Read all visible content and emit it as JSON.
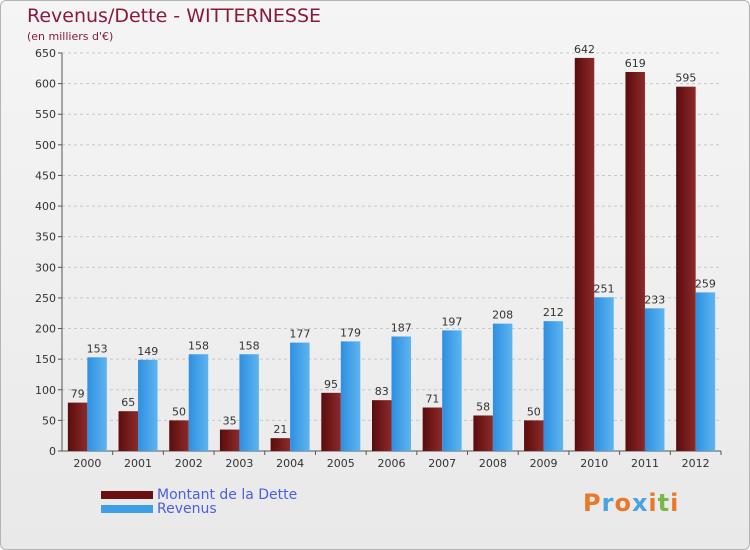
{
  "title": "Revenus/Dette - WITTERNESSE",
  "subtitle": "(en milliers d'€)",
  "chart_data": {
    "type": "bar",
    "categories": [
      "2000",
      "2001",
      "2002",
      "2003",
      "2004",
      "2005",
      "2006",
      "2007",
      "2008",
      "2009",
      "2010",
      "2011",
      "2012"
    ],
    "series": [
      {
        "name": "Montant de la Dette",
        "color": "#7a1616",
        "values": [
          79,
          65,
          50,
          35,
          21,
          95,
          83,
          71,
          58,
          50,
          642,
          619,
          595
        ]
      },
      {
        "name": "Revenus",
        "color": "#3f9fe6",
        "values": [
          153,
          149,
          158,
          158,
          177,
          179,
          187,
          197,
          208,
          212,
          251,
          233,
          259
        ]
      }
    ],
    "yticks": [
      0,
      50,
      100,
      150,
      200,
      250,
      300,
      350,
      400,
      450,
      500,
      550,
      600,
      650
    ],
    "ylim": [
      0,
      650
    ],
    "grid": true,
    "legend_position": "bottom-left"
  },
  "legend": {
    "dette_label": "Montant de la Dette",
    "revenus_label": "Revenus"
  },
  "logo": {
    "text": "Proxiti",
    "colors": [
      "#e8792b",
      "#4aa3df",
      "#e8792b",
      "#4aa3df",
      "#e8792b",
      "#7ab648",
      "#e8792b"
    ]
  }
}
